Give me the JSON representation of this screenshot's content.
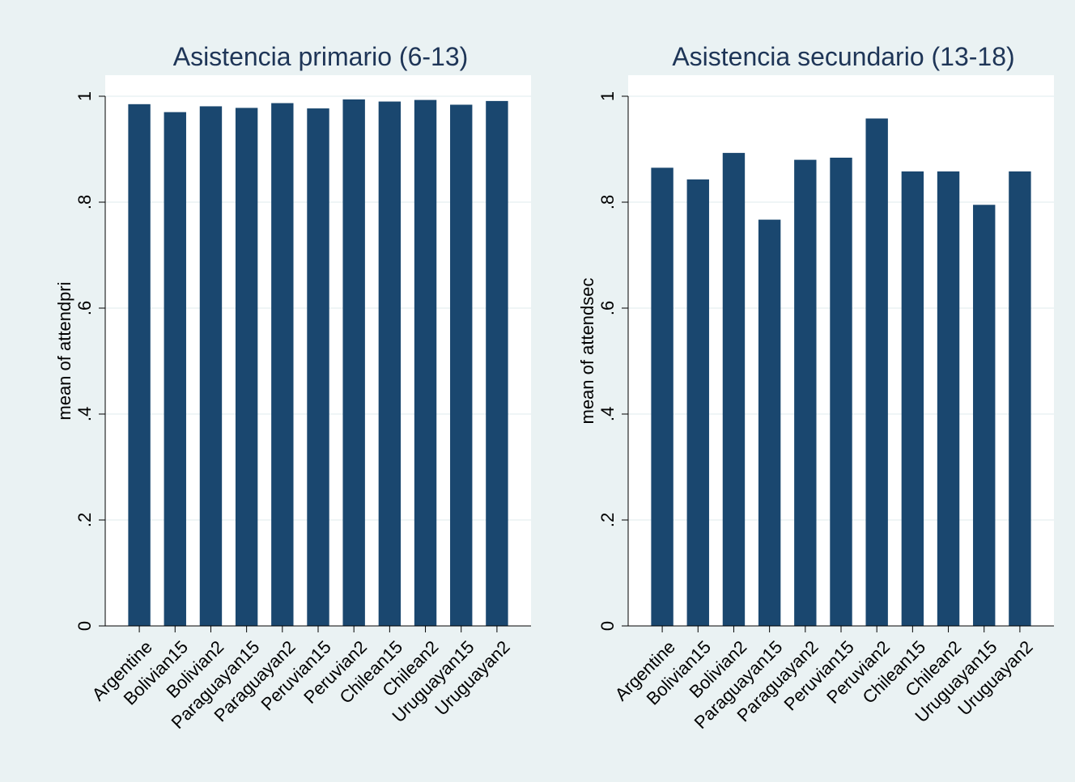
{
  "chart_data": [
    {
      "type": "bar",
      "title": "Asistencia primario (6-13)",
      "xlabel": "",
      "ylabel": "mean of attendpri",
      "ylim": [
        0,
        1
      ],
      "yticks": [
        {
          "value": 0,
          "label": "0"
        },
        {
          "value": 0.2,
          "label": ".2"
        },
        {
          "value": 0.4,
          "label": ".4"
        },
        {
          "value": 0.6,
          "label": ".6"
        },
        {
          "value": 0.8,
          "label": ".8"
        },
        {
          "value": 1,
          "label": "1"
        }
      ],
      "grid": true,
      "categories": [
        "Argentine",
        "Bolivian15",
        "Bolivian2",
        "Paraguayan15",
        "Paraguayan2",
        "Peruvian15",
        "Peruvian2",
        "Chilean15",
        "Chilean2",
        "Uruguayan15",
        "Uruguayan2"
      ],
      "values": [
        0.985,
        0.97,
        0.981,
        0.978,
        0.987,
        0.977,
        0.994,
        0.99,
        0.993,
        0.984,
        0.991
      ],
      "bar_color": "#1a476f"
    },
    {
      "type": "bar",
      "title": "Asistencia secundario (13-18)",
      "xlabel": "",
      "ylabel": "mean of attendsec",
      "ylim": [
        0,
        1
      ],
      "yticks": [
        {
          "value": 0,
          "label": "0"
        },
        {
          "value": 0.2,
          "label": ".2"
        },
        {
          "value": 0.4,
          "label": ".4"
        },
        {
          "value": 0.6,
          "label": ".6"
        },
        {
          "value": 0.8,
          "label": ".8"
        },
        {
          "value": 1,
          "label": "1"
        }
      ],
      "grid": true,
      "categories": [
        "Argentine",
        "Bolivian15",
        "Bolivian2",
        "Paraguayan15",
        "Paraguayan2",
        "Peruvian15",
        "Peruvian2",
        "Chilean15",
        "Chilean2",
        "Uruguayan15",
        "Uruguayan2"
      ],
      "values": [
        0.865,
        0.843,
        0.893,
        0.767,
        0.88,
        0.884,
        0.958,
        0.858,
        0.858,
        0.795,
        0.858
      ],
      "bar_color": "#1a476f"
    }
  ],
  "colors": {
    "background": "#eaf2f3",
    "plot_background": "#ffffff",
    "bar": "#1a476f",
    "title": "#1e3557"
  }
}
